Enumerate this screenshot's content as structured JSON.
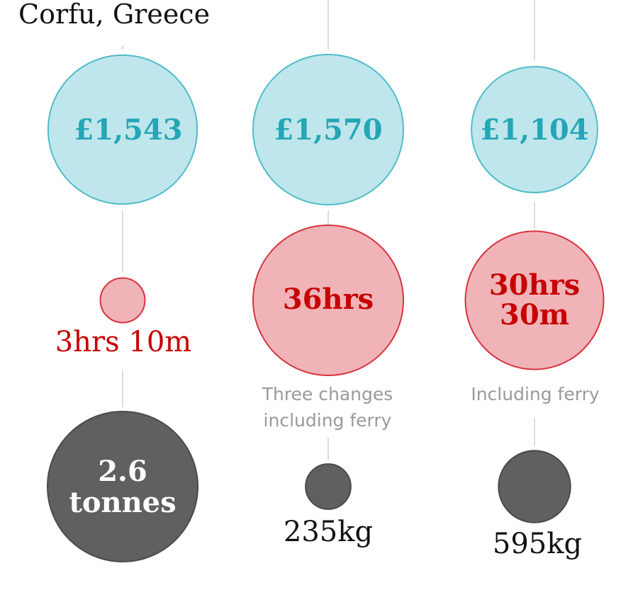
{
  "chart_data": {
    "type": "bubble",
    "title": "Corfu, Greece",
    "metrics": [
      "cost",
      "journey_time",
      "co2"
    ],
    "columns": [
      {
        "cost": {
          "label": "£1,543",
          "value": 1543
        },
        "time": {
          "label": "3hrs 10m",
          "hours": 3.17
        },
        "note": "",
        "co2": {
          "label": "2.6 tonnes",
          "kg": 2600
        }
      },
      {
        "cost": {
          "label": "£1,570",
          "value": 1570
        },
        "time": {
          "label": "36hrs",
          "hours": 36
        },
        "note": "Three changes including ferry",
        "co2": {
          "label": "235kg",
          "kg": 235
        }
      },
      {
        "cost": {
          "label": "£1,104",
          "value": 1104
        },
        "time": {
          "label": "30hrs 30m",
          "hours": 30.5
        },
        "note": "Including ferry",
        "co2": {
          "label": "595kg",
          "kg": 595
        }
      }
    ],
    "colors": {
      "cost_fill": "#bfe6ec",
      "cost_stroke": "#4fbcc8",
      "cost_text": "#24a6b6",
      "time_fill": "#f0b4b8",
      "time_stroke": "#d8343f",
      "time_text": "#c70000",
      "co2_fill": "#606060",
      "co2_stroke": "#4a4a4a",
      "co2_text": "#ffffff",
      "below_text": "#121212",
      "connector": "#dcdcdc"
    }
  }
}
